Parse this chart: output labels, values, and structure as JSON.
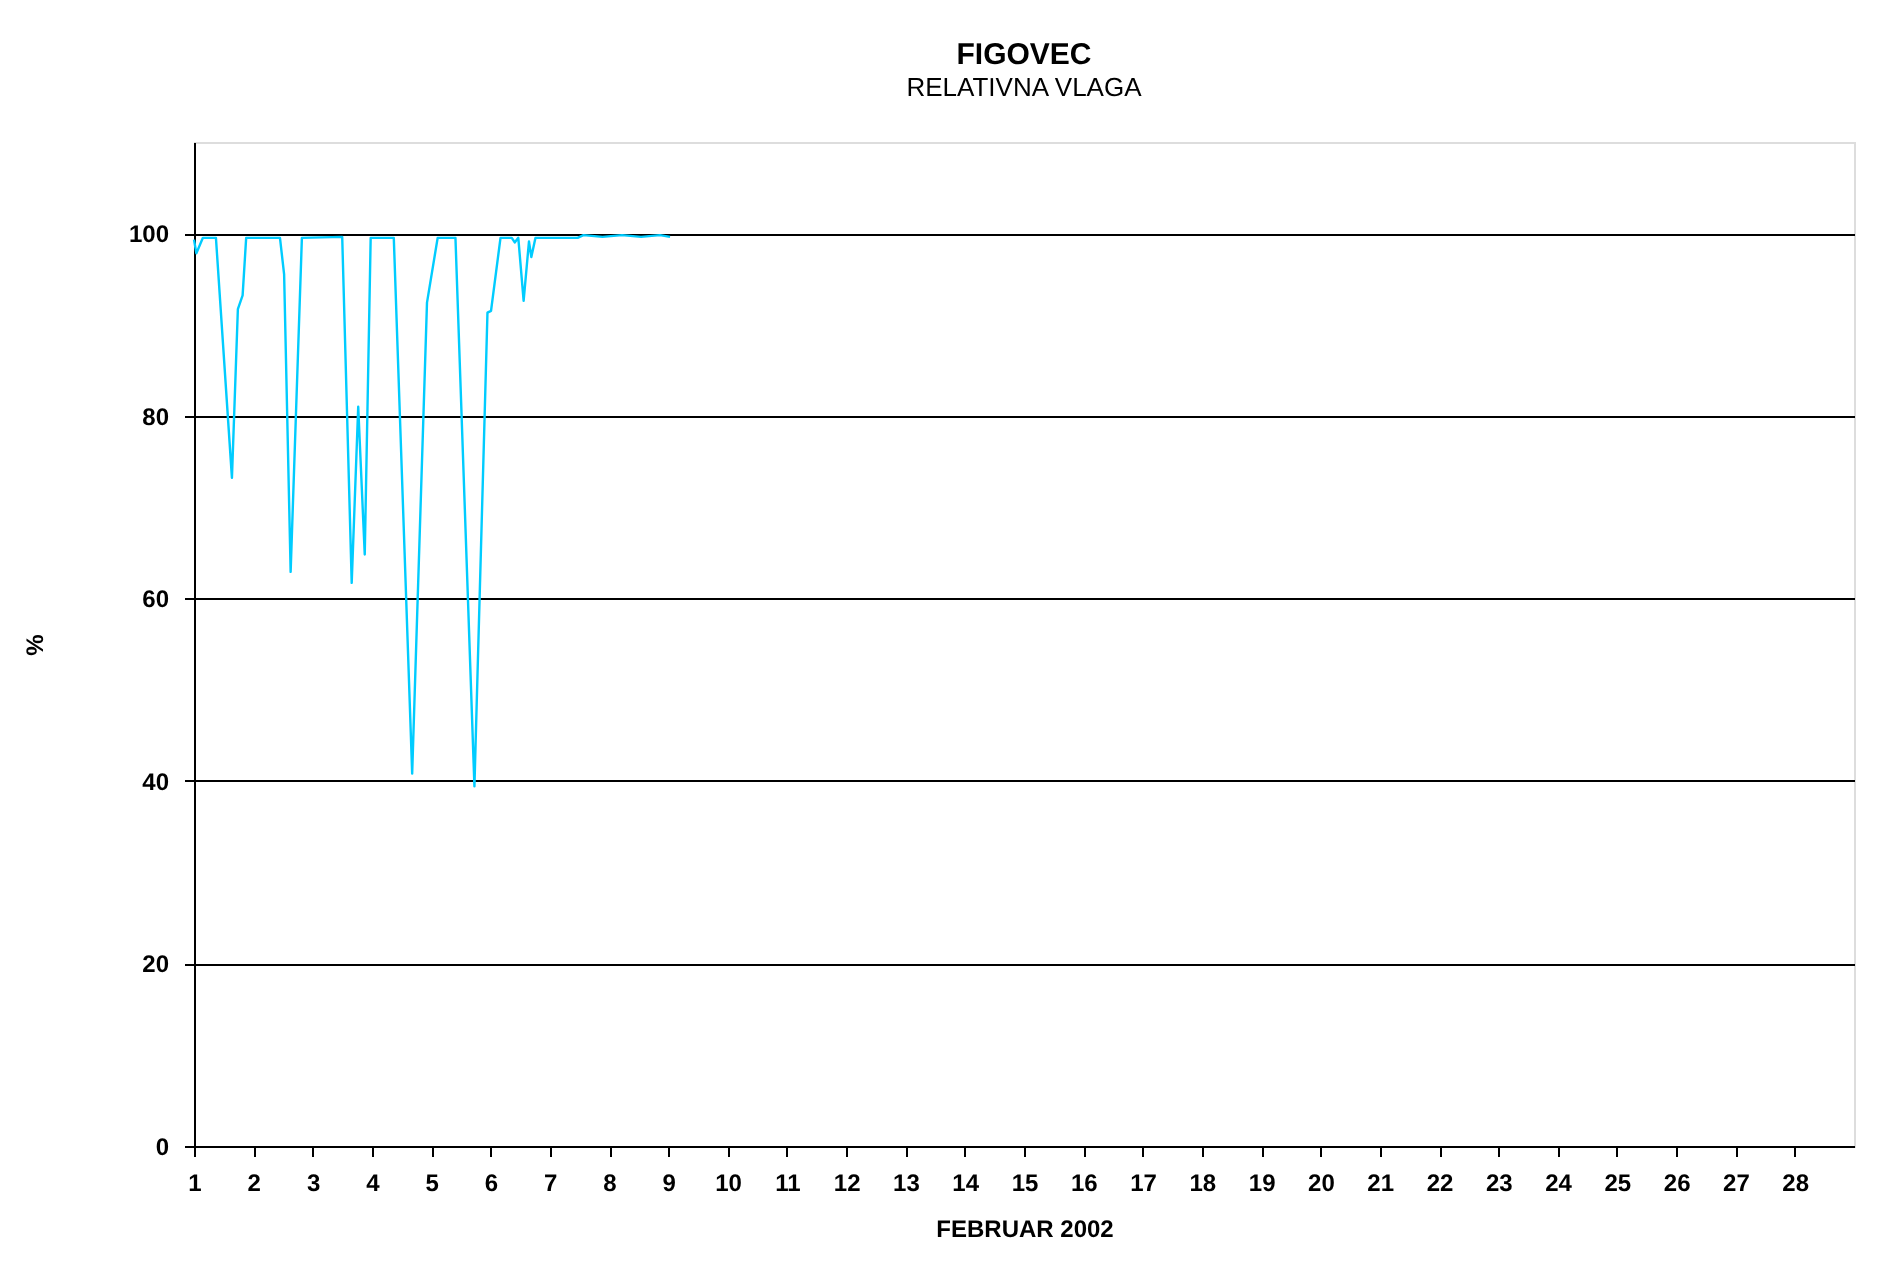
{
  "chart_data": {
    "type": "line",
    "title": "FIGOVEC",
    "subtitle": "RELATIVNA VLAGA",
    "xlabel": "FEBRUAR 2002",
    "ylabel": "%",
    "x": [
      1.0,
      1.04,
      1.15,
      1.37,
      1.64,
      1.74,
      1.82,
      1.88,
      2.45,
      2.52,
      2.63,
      2.82,
      3.5,
      3.66,
      3.77,
      3.88,
      3.98,
      4.37,
      4.68,
      4.93,
      5.11,
      5.41,
      5.73,
      5.95,
      6.01,
      6.17,
      6.36,
      6.41,
      6.47,
      6.56,
      6.65,
      6.69,
      6.76,
      7.47,
      7.57,
      7.89,
      8.22,
      8.54,
      8.86,
      9.03
    ],
    "series": [
      {
        "color": "#00ccff",
        "values": [
          99.3,
          97.8,
          99.5,
          99.5,
          73.2,
          91.7,
          93.2,
          99.5,
          99.5,
          95.5,
          62.9,
          99.5,
          99.6,
          61.7,
          81.0,
          64.8,
          99.5,
          99.5,
          40.8,
          92.4,
          99.5,
          99.5,
          39.4,
          91.3,
          91.5,
          99.5,
          99.5,
          99.0,
          99.5,
          92.6,
          99.1,
          97.4,
          99.5,
          99.5,
          99.8,
          99.6,
          99.8,
          99.6,
          99.8,
          99.6
        ]
      }
    ],
    "xlim": [
      1,
      29
    ],
    "xticks": [
      1,
      2,
      3,
      4,
      5,
      6,
      7,
      8,
      9,
      10,
      11,
      12,
      13,
      14,
      15,
      16,
      17,
      18,
      19,
      20,
      21,
      22,
      23,
      24,
      25,
      26,
      27,
      28
    ],
    "ylim": [
      0,
      110
    ],
    "yticks": [
      0,
      20,
      40,
      60,
      80,
      100
    ],
    "grid": "y",
    "marker": "none",
    "line_style": "solid"
  }
}
